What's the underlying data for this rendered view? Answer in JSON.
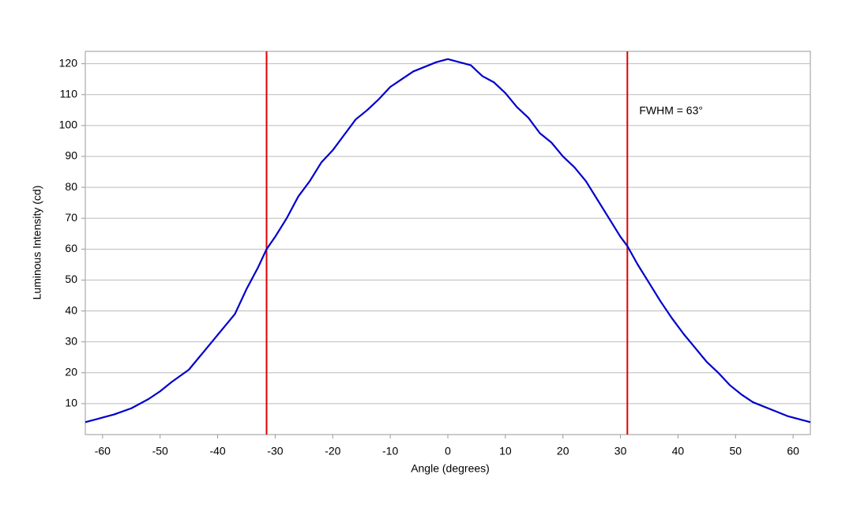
{
  "chart_data": {
    "type": "line",
    "x_label": "Angle (degrees)",
    "y_label": "Luminous Intensity (cd)",
    "annotation": "FWHM = 63°",
    "x": [
      -63,
      -60,
      -58,
      -55,
      -52,
      -50,
      -48,
      -45,
      -43,
      -41,
      -39,
      -37,
      -35,
      -33,
      -31.5,
      -30,
      -28,
      -26,
      -24,
      -22,
      -20,
      -18,
      -16,
      -14,
      -12,
      -10,
      -8,
      -6,
      -4,
      -2,
      0,
      2,
      4,
      6,
      8,
      10,
      12,
      14,
      16,
      18,
      20,
      22,
      24,
      26,
      28,
      30,
      31.2,
      33,
      35,
      37,
      39,
      41,
      43,
      45,
      47,
      49,
      51,
      53,
      55,
      57,
      59,
      61,
      63
    ],
    "series": [
      {
        "color": "#0000cc",
        "values": [
          4,
          5.5,
          6.5,
          8.5,
          11.5,
          14,
          17,
          21,
          25.5,
          30,
          34.5,
          39,
          47,
          54,
          60,
          64,
          70,
          77,
          82,
          88,
          92,
          97,
          102,
          105,
          108.5,
          112.5,
          115,
          117.5,
          119,
          120.5,
          121.5,
          120.5,
          119.5,
          116,
          114,
          110.5,
          106,
          102.5,
          97.5,
          94.5,
          90,
          86.5,
          82,
          76,
          70,
          64,
          61,
          55,
          49,
          43,
          37.5,
          32.5,
          28,
          23.5,
          20,
          16,
          13,
          10.5,
          9,
          7.5,
          6,
          5,
          4
        ]
      }
    ],
    "vertical_lines": [
      {
        "x": -31.5,
        "color": "#dd0000"
      },
      {
        "x": 31.2,
        "color": "#dd0000"
      }
    ],
    "xlim": [
      -63,
      63
    ],
    "xticks": [
      -60,
      -50,
      -40,
      -30,
      -20,
      -10,
      0,
      10,
      20,
      30,
      40,
      50,
      60
    ],
    "ylim": [
      0,
      124
    ],
    "yticks": [
      10,
      20,
      30,
      40,
      50,
      60,
      70,
      80,
      90,
      100,
      110,
      120
    ],
    "grid": true
  }
}
